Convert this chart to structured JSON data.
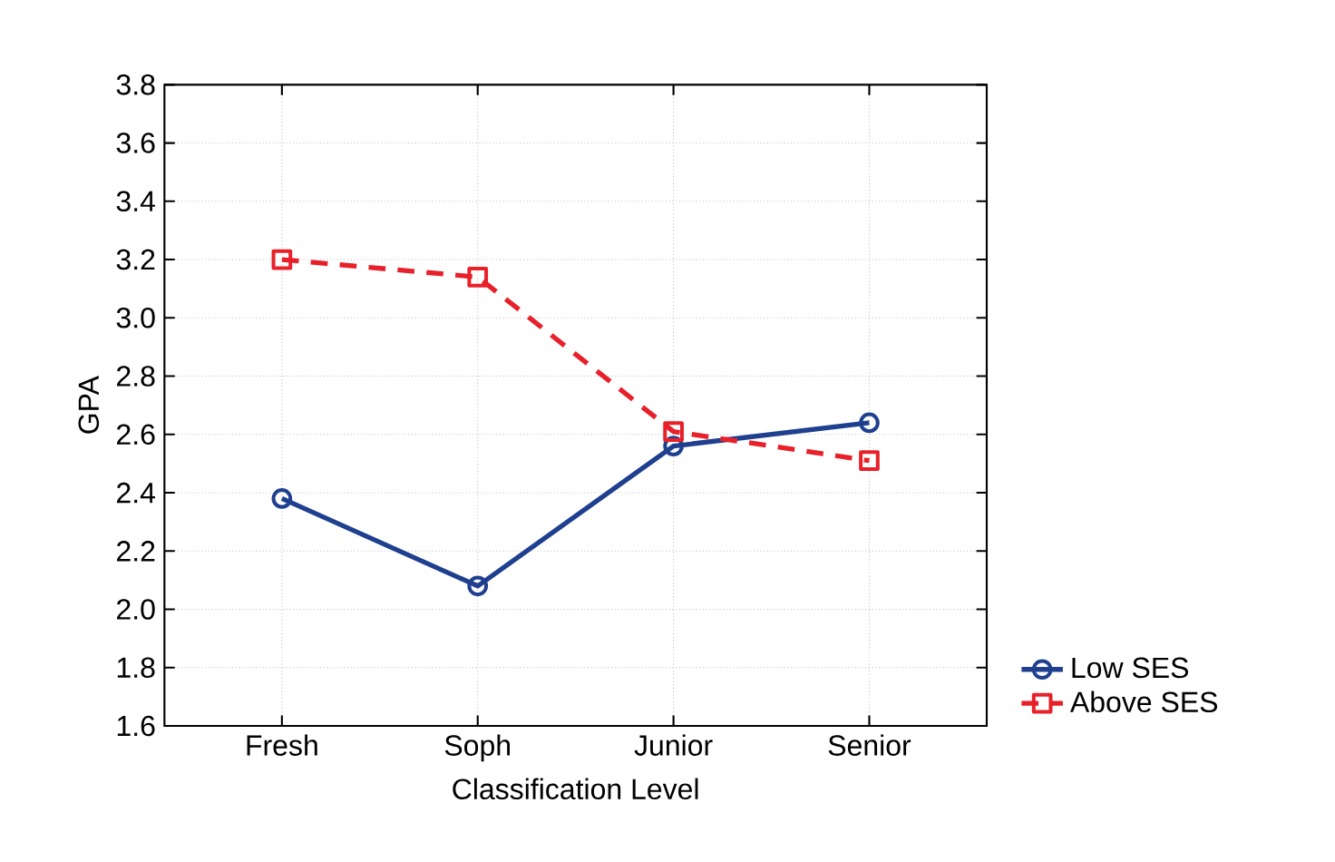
{
  "chart_data": {
    "type": "line",
    "xlabel": "Classification Level",
    "ylabel": "GPA",
    "categories": [
      "Fresh",
      "Soph",
      "Junior",
      "Senior"
    ],
    "series": [
      {
        "name": "Low SES",
        "color": "#1f3f8f",
        "values": [
          2.38,
          2.08,
          2.56,
          2.64
        ],
        "marker": "circle",
        "line_style": "solid"
      },
      {
        "name": "Above SES",
        "color": "#e8202a",
        "values": [
          3.2,
          3.14,
          2.61,
          2.51
        ],
        "marker": "square",
        "line_style": "dashed"
      }
    ],
    "ylim": [
      1.6,
      3.8
    ],
    "yticks": [
      1.6,
      1.8,
      {
        "value": 2,
        "label": "2.0"
      },
      2.2,
      2.4,
      2.6,
      2.8,
      {
        "value": 3,
        "label": "3.0"
      },
      3.2,
      3.4,
      3.6,
      3.8
    ],
    "grid": true,
    "legend": "bottom right"
  }
}
